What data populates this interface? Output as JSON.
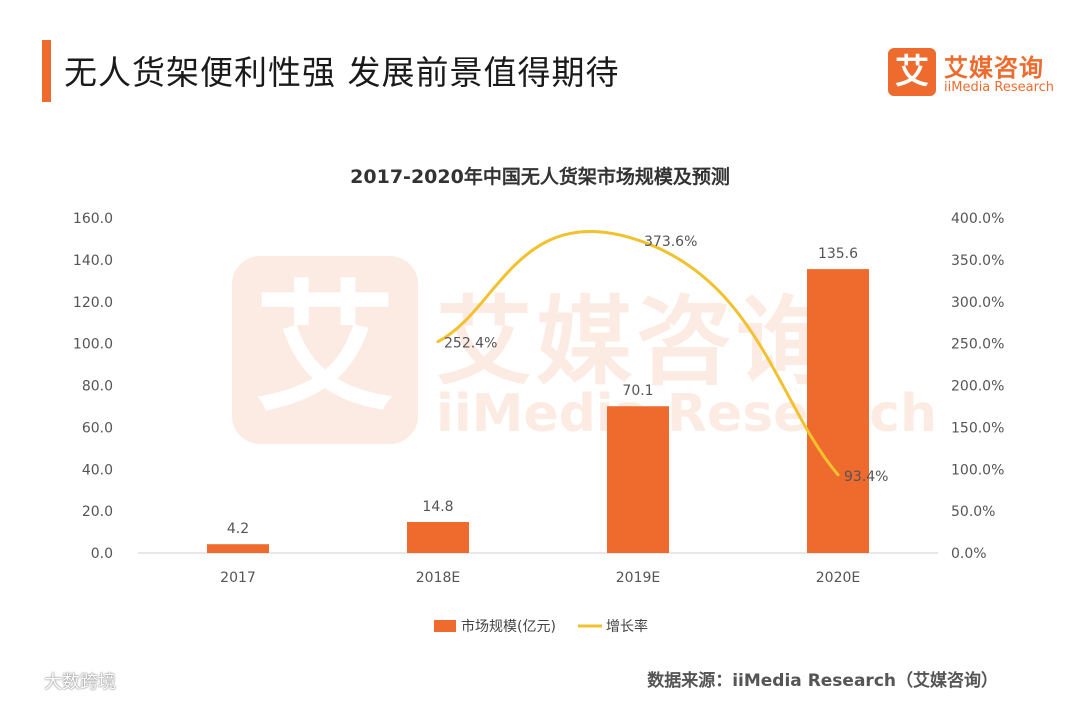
{
  "header": {
    "title": "无人货架便利性强  发展前景值得期待",
    "logo_cn": "艾媒咨询",
    "logo_en": "iiMedia Research",
    "logo_glyph": "艾"
  },
  "watermark": {
    "glyph": "艾",
    "cn": "艾媒咨询",
    "en": "iiMedia Research"
  },
  "chart_data": {
    "type": "bar",
    "title": "2017-2020年中国无人货架市场规模及预测",
    "categories": [
      "2017",
      "2018E",
      "2019E",
      "2020E"
    ],
    "series": [
      {
        "name": "市场规模(亿元)",
        "type": "bar",
        "axis": "left",
        "color": "#ee6a2d",
        "values": [
          4.2,
          14.8,
          70.1,
          135.6
        ],
        "labels": [
          "4.2",
          "14.8",
          "70.1",
          "135.6"
        ]
      },
      {
        "name": "增长率",
        "type": "line",
        "axis": "right",
        "color": "#f2c12e",
        "values": [
          null,
          252.4,
          373.6,
          93.4
        ],
        "labels": [
          "",
          "252.4%",
          "373.6%",
          "93.4%"
        ]
      }
    ],
    "y_left": {
      "ylim": [
        0,
        160
      ],
      "ticks": [
        "0.0",
        "20.0",
        "40.0",
        "60.0",
        "80.0",
        "100.0",
        "120.0",
        "140.0",
        "160.0"
      ]
    },
    "y_right": {
      "ylim": [
        0,
        400
      ],
      "ticks": [
        "0.0%",
        "50.0%",
        "100.0%",
        "150.0%",
        "200.0%",
        "250.0%",
        "300.0%",
        "350.0%",
        "400.0%"
      ]
    },
    "grid": false,
    "legend": "bottom"
  },
  "footer": {
    "source": "数据来源：iiMedia Research（艾媒咨询）",
    "corner_mark": "大数跨境"
  }
}
